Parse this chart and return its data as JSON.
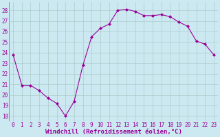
{
  "x": [
    0,
    1,
    2,
    3,
    4,
    5,
    6,
    7,
    8,
    9,
    10,
    11,
    12,
    13,
    14,
    15,
    16,
    17,
    18,
    19,
    20,
    21,
    22,
    23
  ],
  "y": [
    23.8,
    20.9,
    20.9,
    20.4,
    19.7,
    19.2,
    18.0,
    19.4,
    22.8,
    25.5,
    26.3,
    26.7,
    28.0,
    28.1,
    27.9,
    27.5,
    27.5,
    27.6,
    27.4,
    26.9,
    26.5,
    25.1,
    24.8,
    23.8
  ],
  "line_color": "#990099",
  "marker": "D",
  "marker_size": 2,
  "bg_color": "#cce8f0",
  "grid_color": "#aacccc",
  "xlabel": "Windchill (Refroidissement éolien,°C)",
  "xlabel_color": "#990099",
  "tick_color": "#990099",
  "ylim": [
    17.5,
    28.8
  ],
  "xlim": [
    -0.5,
    23.5
  ],
  "yticks": [
    18,
    19,
    20,
    21,
    22,
    23,
    24,
    25,
    26,
    27,
    28
  ],
  "xticks": [
    0,
    1,
    2,
    3,
    4,
    5,
    6,
    7,
    8,
    9,
    10,
    11,
    12,
    13,
    14,
    15,
    16,
    17,
    18,
    19,
    20,
    21,
    22,
    23
  ],
  "tick_fontsize": 5.5,
  "xlabel_fontsize": 6.5,
  "linewidth": 0.8
}
